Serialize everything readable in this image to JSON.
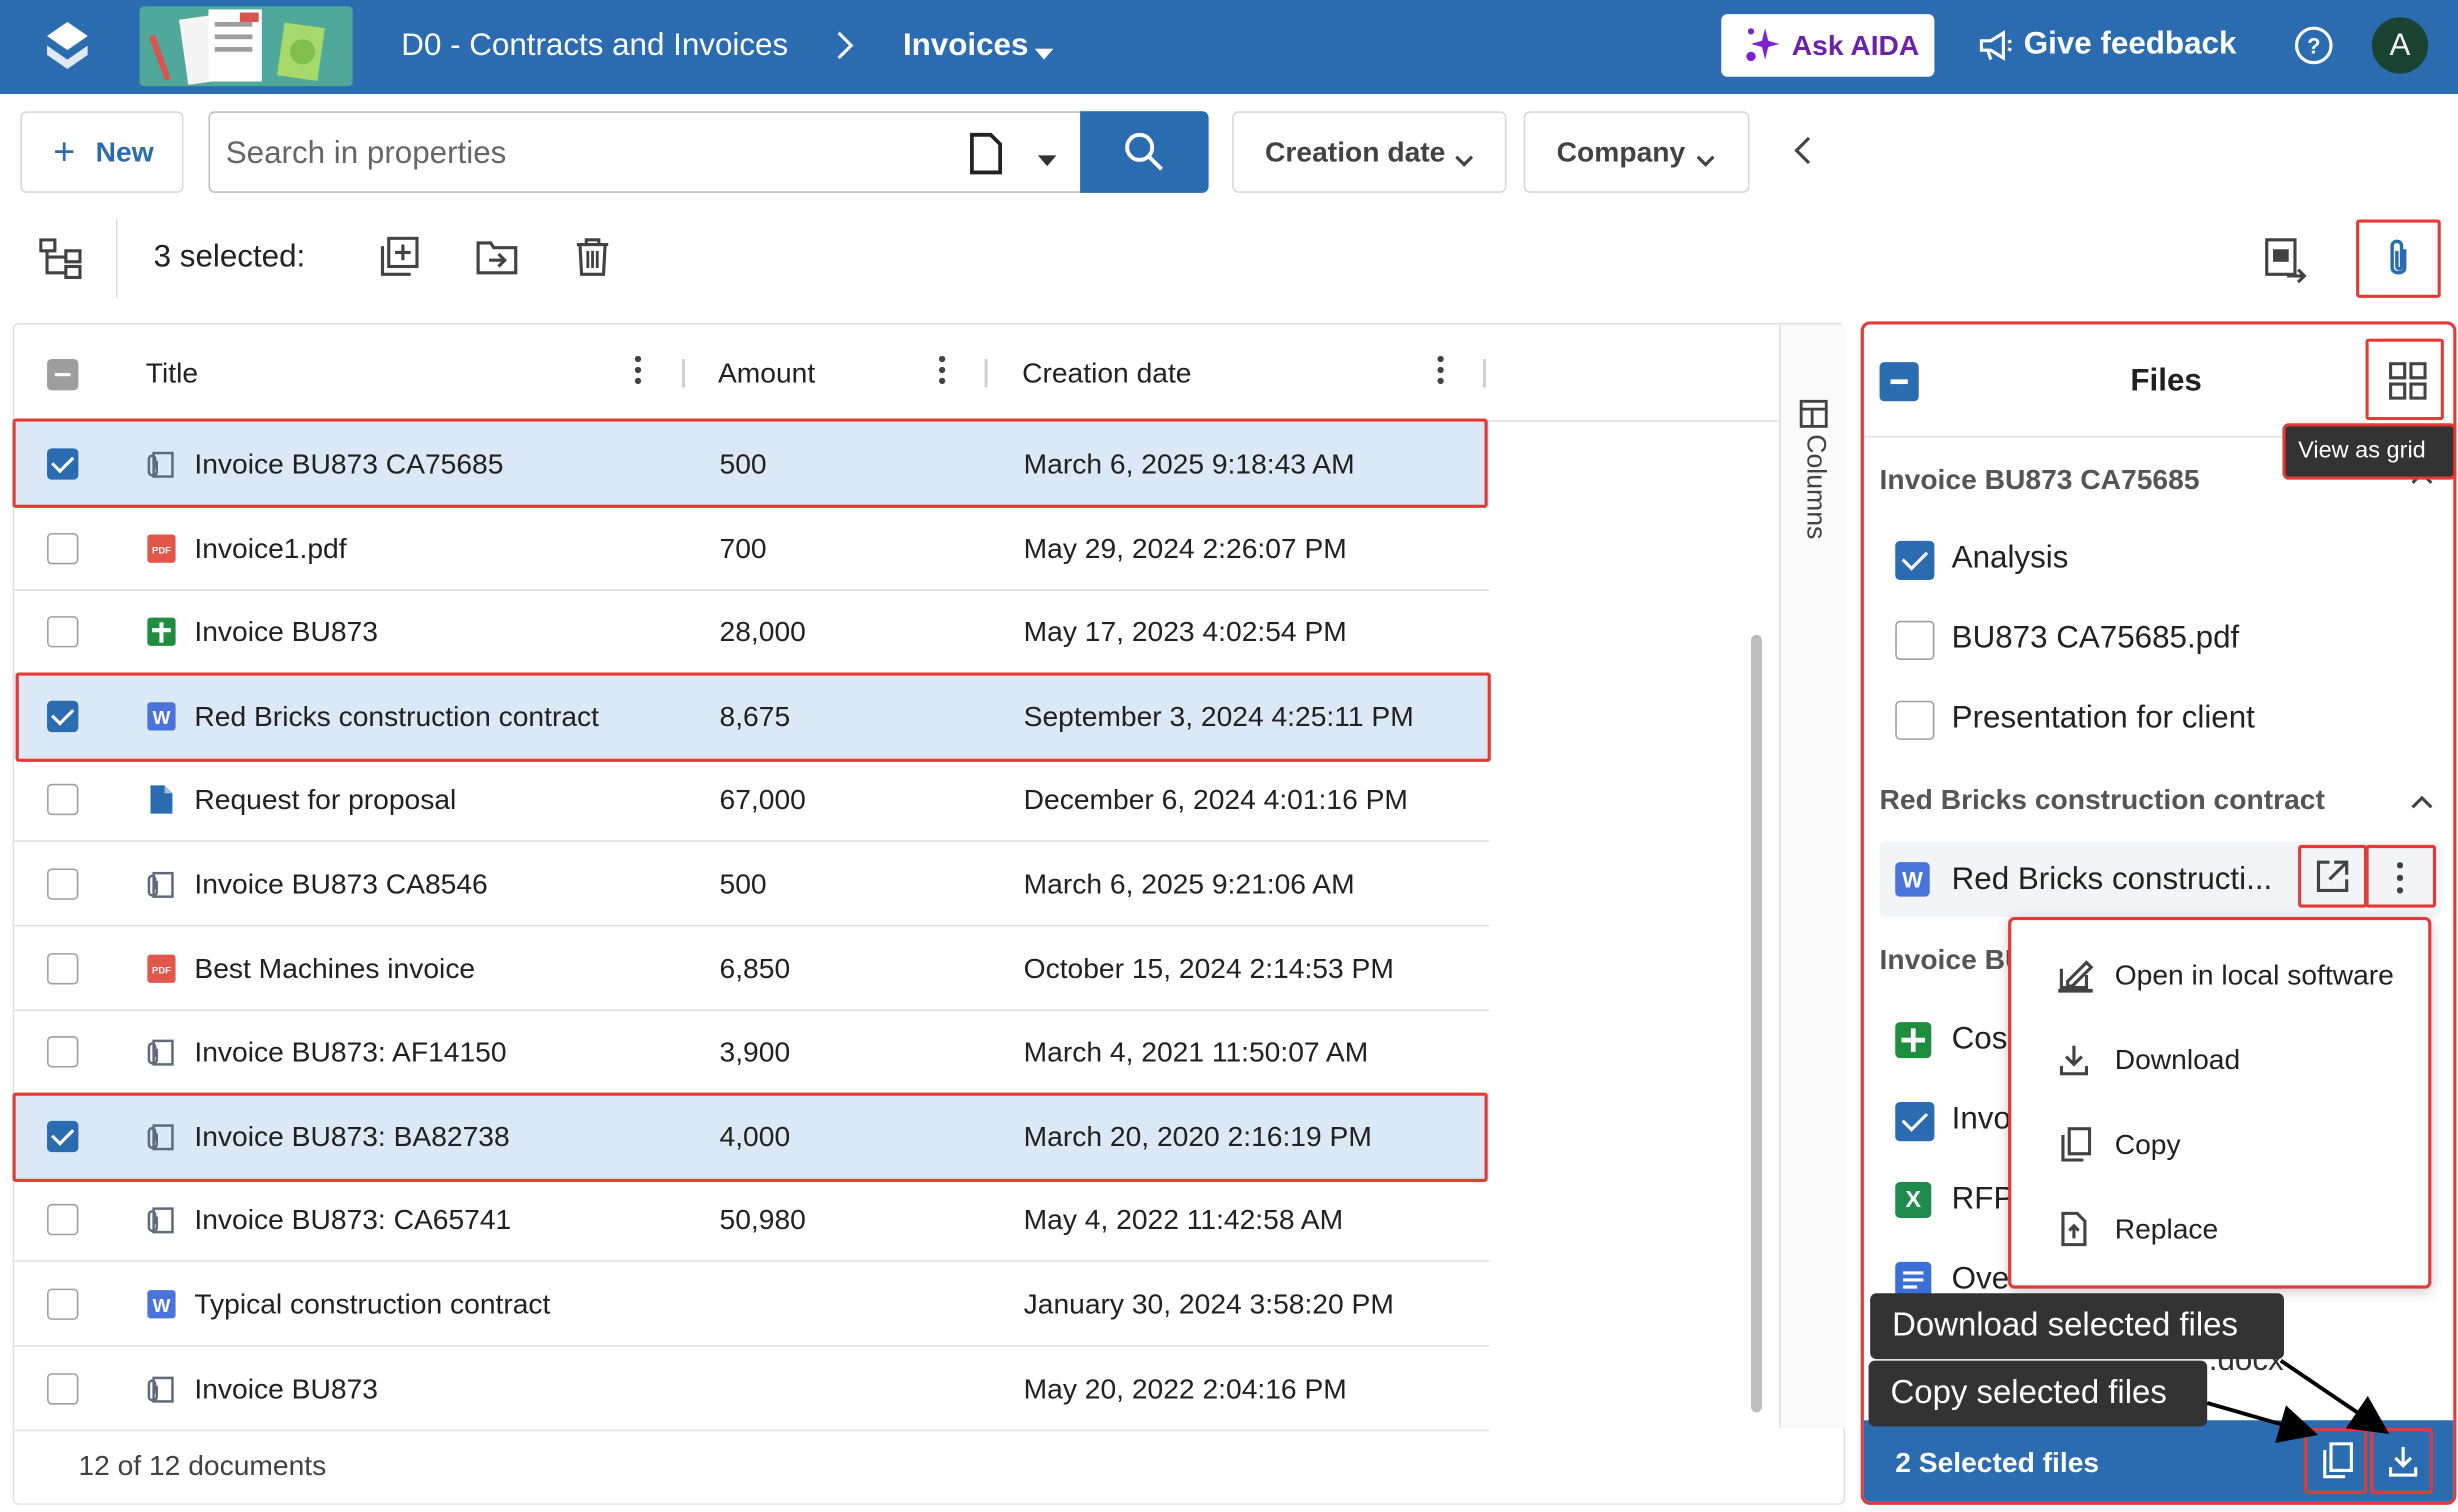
{
  "header": {
    "breadcrumb_root": "D0 - Contracts and Invoices",
    "breadcrumb_sep": ">",
    "breadcrumb_current": "Invoices",
    "ask_label": "Ask AIDA",
    "feedback_label": "Give feedback",
    "avatar_letter": "A",
    "brand_color": "#2b6cb0"
  },
  "toolbar": {
    "new_label": "New",
    "search_placeholder": "Search in properties",
    "filters": [
      "Creation date",
      "Company"
    ]
  },
  "selection": {
    "count_label": "3 selected:"
  },
  "table": {
    "columns": [
      "Title",
      "Amount",
      "Creation date"
    ],
    "side_label": "Columns",
    "rows": [
      {
        "icon": "attachment-icon",
        "title": "Invoice BU873 CA75685",
        "amount": "500",
        "date": "March 6, 2025 9:18:43 AM",
        "selected": true
      },
      {
        "icon": "pdf-icon",
        "title": "Invoice1.pdf",
        "amount": "700",
        "date": "May 29, 2024 2:26:07 PM",
        "selected": false
      },
      {
        "icon": "sheet-icon",
        "title": "Invoice BU873",
        "amount": "28,000",
        "date": "May 17, 2023 4:02:54 PM",
        "selected": false
      },
      {
        "icon": "word-icon",
        "title": "Red Bricks construction contract",
        "amount": "8,675",
        "date": "September 3, 2024 4:25:11 PM",
        "selected": true
      },
      {
        "icon": "document-icon",
        "title": "Request for proposal",
        "amount": "67,000",
        "date": "December 6, 2024 4:01:16 PM",
        "selected": false
      },
      {
        "icon": "attachment-icon",
        "title": "Invoice BU873 CA8546",
        "amount": "500",
        "date": "March 6, 2025 9:21:06 AM",
        "selected": false
      },
      {
        "icon": "pdf-icon",
        "title": "Best Machines invoice",
        "amount": "6,850",
        "date": "October 15, 2024 2:14:53 PM",
        "selected": false
      },
      {
        "icon": "attachment-icon",
        "title": "Invoice BU873: AF14150",
        "amount": "3,900",
        "date": "March 4, 2021 11:50:07 AM",
        "selected": false
      },
      {
        "icon": "attachment-icon",
        "title": "Invoice BU873: BA82738",
        "amount": "4,000",
        "date": "March 20, 2020 2:16:19 PM",
        "selected": true
      },
      {
        "icon": "attachment-icon",
        "title": "Invoice BU873: CA65741",
        "amount": "50,980",
        "date": "May 4, 2022 11:42:58 AM",
        "selected": false
      },
      {
        "icon": "word-icon",
        "title": "Typical construction contract",
        "amount": "",
        "date": "January 30, 2024 3:58:20 PM",
        "selected": false
      },
      {
        "icon": "attachment-icon",
        "title": "Invoice BU873",
        "amount": "",
        "date": "May 20, 2022 2:04:16 PM",
        "selected": false
      }
    ],
    "footer": "12 of 12 documents"
  },
  "files_panel": {
    "title": "Files",
    "grid_tooltip": "View as grid",
    "group1": "Invoice BU873 CA75685",
    "group1_items": [
      {
        "label": "Analysis",
        "checked": true
      },
      {
        "label": "BU873 CA75685.pdf",
        "checked": false
      },
      {
        "label": "Presentation for client",
        "checked": false
      }
    ],
    "group2": "Red Bricks construction contract",
    "group2_item": "Red Bricks constructi...",
    "group3": "Invoice BU",
    "group3_items": [
      "Cos",
      "Invo",
      "RFP",
      "Ove"
    ],
    "partial_text": ".docx",
    "bottom_label": "2 Selected files"
  },
  "context_menu": {
    "items": [
      "Open in local software",
      "Download",
      "Copy",
      "Replace"
    ]
  },
  "tooltips": {
    "download": "Download selected files",
    "copy": "Copy selected files"
  }
}
